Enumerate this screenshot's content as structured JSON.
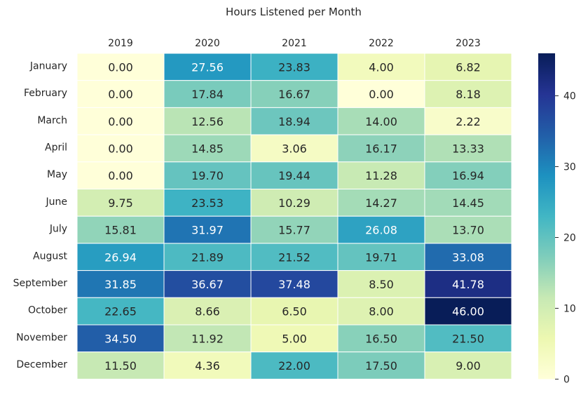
{
  "chart_data": {
    "type": "heatmap",
    "title": "Hours Listened per Month",
    "xlabel": "",
    "ylabel": "",
    "x_categories": [
      "2019",
      "2020",
      "2021",
      "2022",
      "2023"
    ],
    "y_categories": [
      "January",
      "February",
      "March",
      "April",
      "May",
      "June",
      "July",
      "August",
      "September",
      "October",
      "November",
      "December"
    ],
    "values": [
      [
        0.0,
        27.56,
        23.83,
        4.0,
        6.82
      ],
      [
        0.0,
        17.84,
        16.67,
        0.0,
        8.18
      ],
      [
        0.0,
        12.56,
        18.94,
        14.0,
        2.22
      ],
      [
        0.0,
        14.85,
        3.06,
        16.17,
        13.33
      ],
      [
        0.0,
        19.7,
        19.44,
        11.28,
        16.94
      ],
      [
        9.75,
        23.53,
        10.29,
        14.27,
        14.45
      ],
      [
        15.81,
        31.97,
        15.77,
        26.08,
        13.7
      ],
      [
        26.94,
        21.89,
        21.52,
        19.71,
        33.08
      ],
      [
        31.85,
        36.67,
        37.48,
        8.5,
        41.78
      ],
      [
        22.65,
        8.66,
        6.5,
        8.0,
        46.0
      ],
      [
        34.5,
        11.92,
        5.0,
        16.5,
        21.5
      ],
      [
        11.5,
        4.36,
        22.0,
        17.5,
        9.0
      ]
    ],
    "value_labels": [
      [
        "0.00",
        "27.56",
        "23.83",
        "4.00",
        "6.82"
      ],
      [
        "0.00",
        "17.84",
        "16.67",
        "0.00",
        "8.18"
      ],
      [
        "0.00",
        "12.56",
        "18.94",
        "14.00",
        "2.22"
      ],
      [
        "0.00",
        "14.85",
        "3.06",
        "16.17",
        "13.33"
      ],
      [
        "0.00",
        "19.70",
        "19.44",
        "11.28",
        "16.94"
      ],
      [
        "9.75",
        "23.53",
        "10.29",
        "14.27",
        "14.45"
      ],
      [
        "15.81",
        "31.97",
        "15.77",
        "26.08",
        "13.70"
      ],
      [
        "26.94",
        "21.89",
        "21.52",
        "19.71",
        "33.08"
      ],
      [
        "31.85",
        "36.67",
        "37.48",
        "8.50",
        "41.78"
      ],
      [
        "22.65",
        "8.66",
        "6.50",
        "8.00",
        "46.00"
      ],
      [
        "34.50",
        "11.92",
        "5.00",
        "16.50",
        "21.50"
      ],
      [
        "11.50",
        "4.36",
        "22.00",
        "17.50",
        "9.00"
      ]
    ],
    "x_axis_position": "top",
    "colormap": "YlGnBu",
    "colormap_stops": [
      "#ffffd9",
      "#edf8b1",
      "#c7e9b4",
      "#7fcdbb",
      "#41b6c4",
      "#1d91c0",
      "#225ea8",
      "#253494",
      "#081d58"
    ],
    "color_range": [
      0,
      46
    ],
    "colorbar": {
      "ticks": [
        0,
        10,
        20,
        30,
        40
      ],
      "tick_labels": [
        "0",
        "10",
        "20",
        "30",
        "40"
      ]
    },
    "grid": false
  }
}
